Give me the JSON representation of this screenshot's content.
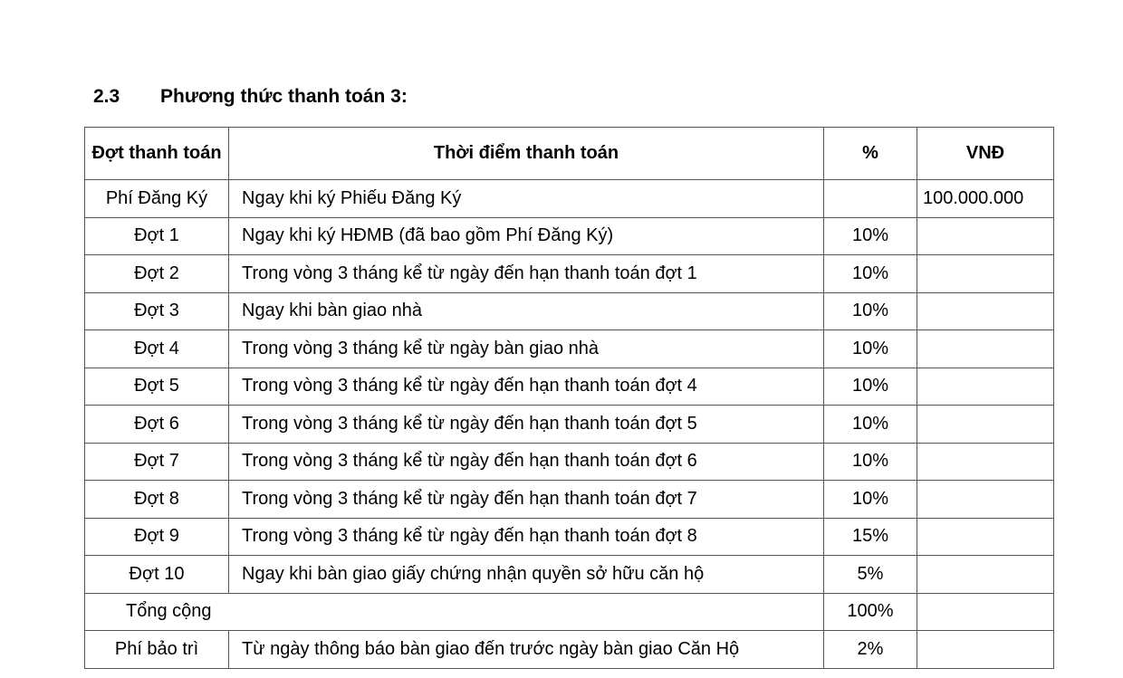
{
  "section": {
    "number": "2.3",
    "title": "Phương thức thanh toán 3:"
  },
  "table": {
    "headers": [
      "Đợt thanh toán",
      "Thời điểm thanh toán",
      "%",
      "VNĐ"
    ],
    "rows": [
      [
        "Phí Đăng Ký",
        "Ngay khi ký Phiếu Đăng Ký",
        "",
        "100.000.000"
      ],
      [
        "Đợt 1",
        "Ngay khi ký HĐMB (đã bao gồm Phí Đăng Ký)",
        "10%",
        ""
      ],
      [
        "Đợt 2",
        "Trong vòng 3 tháng kể từ ngày đến hạn thanh toán đợt 1",
        "10%",
        ""
      ],
      [
        "Đợt 3",
        "Ngay khi bàn giao nhà",
        "10%",
        ""
      ],
      [
        "Đợt 4",
        "Trong vòng 3 tháng kể từ ngày bàn giao nhà",
        "10%",
        ""
      ],
      [
        "Đợt 5",
        "Trong vòng 3 tháng kể từ ngày đến hạn thanh toán đợt 4",
        "10%",
        ""
      ],
      [
        "Đợt 6",
        "Trong vòng 3 tháng kể từ ngày đến hạn thanh toán đợt 5",
        "10%",
        ""
      ],
      [
        "Đợt 7",
        "Trong vòng 3 tháng kể từ ngày đến hạn thanh toán đợt 6",
        "10%",
        ""
      ],
      [
        "Đợt 8",
        "Trong vòng 3 tháng kể từ ngày đến hạn thanh toán đợt 7",
        "10%",
        ""
      ],
      [
        "Đợt 9",
        "Trong vòng 3 tháng kể từ ngày đến hạn thanh toán đợt 8",
        "15%",
        ""
      ],
      [
        "Đợt 10",
        "Ngay khi bàn giao giấy chứng nhận quyền sở hữu căn hộ",
        "5%",
        ""
      ]
    ],
    "total": {
      "label": "Tổng cộng",
      "percent": "100%",
      "vnd": ""
    },
    "maintenance": [
      "Phí bảo trì",
      "Từ ngày thông báo bàn giao đến trước ngày bàn giao Căn Hộ",
      "2%",
      ""
    ]
  }
}
